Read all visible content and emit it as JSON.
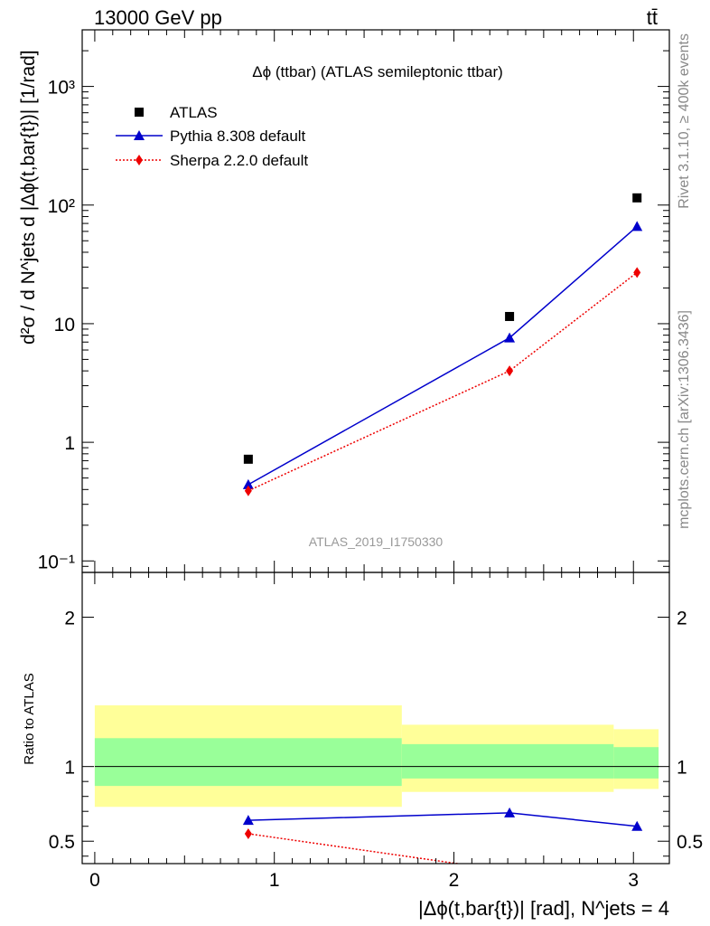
{
  "header": {
    "energy": "13000 GeV pp",
    "process": "tt̄"
  },
  "side_labels": {
    "rivet": "Rivet 3.1.10, ≥ 400k events",
    "mcplots": "mcplots.cern.ch [arXiv:1306.3436]"
  },
  "main_title": "Δϕ (ttbar) (ATLAS semileptonic ttbar)",
  "watermark": "ATLAS_2019_I1750330",
  "ylabel_main": "d²σ / d N^jets d |Δϕ(t,bar{t})| [1/rad]",
  "ylabel_ratio": "Ratio to ATLAS",
  "xlabel": "|Δϕ(t,bar{t})| [rad], N^jets = 4",
  "legend": [
    "ATLAS",
    "Pythia 8.308 default",
    "Sherpa 2.2.0 default"
  ],
  "chart_data": [
    {
      "type": "scatter",
      "title": "Δϕ (ttbar) (ATLAS semileptonic ttbar)",
      "xlabel": "|Δϕ(t,bar{t})| [rad], N^jets = 4",
      "ylabel": "d²σ / d N^jets d |Δϕ(t,bar{t})| [1/rad]",
      "yscale": "log",
      "xlim": [
        -0.07,
        3.2
      ],
      "ylim": [
        0.08,
        3000
      ],
      "y_ticks": [
        "10⁻¹",
        "1",
        "10",
        "10²",
        "10³"
      ],
      "legend_position": "top-left",
      "x": [
        0.855,
        2.31,
        3.02
      ],
      "series": [
        {
          "name": "ATLAS",
          "color": "#000000",
          "marker": "square",
          "values": [
            0.72,
            11.5,
            115
          ]
        },
        {
          "name": "Pythia 8.308 default",
          "color": "#0000cc",
          "marker": "triangle",
          "line": "solid",
          "values": [
            0.44,
            7.6,
            66
          ]
        },
        {
          "name": "Sherpa 2.2.0 default",
          "color": "#ee0000",
          "marker": "diamond",
          "line": "dotted",
          "values": [
            0.39,
            4.0,
            27
          ]
        }
      ]
    },
    {
      "type": "line",
      "ylabel": "Ratio to ATLAS",
      "xlim": [
        -0.07,
        3.2
      ],
      "ylim": [
        0.35,
        2.3
      ],
      "x_ticks": [
        "0",
        "1",
        "2",
        "3"
      ],
      "y_ticks": [
        "0.5",
        "1",
        "2"
      ],
      "reference_line": 1,
      "bands": [
        {
          "x_range": [
            0,
            1.71
          ],
          "yellow": [
            0.73,
            1.41
          ],
          "green": [
            0.87,
            1.19
          ]
        },
        {
          "x_range": [
            1.71,
            2.89
          ],
          "yellow": [
            0.83,
            1.28
          ],
          "green": [
            0.92,
            1.15
          ]
        },
        {
          "x_range": [
            2.89,
            3.14
          ],
          "yellow": [
            0.85,
            1.25
          ],
          "green": [
            0.92,
            1.13
          ]
        }
      ],
      "x": [
        0.855,
        2.31,
        3.02
      ],
      "series": [
        {
          "name": "Pythia 8.308 default",
          "color": "#0000cc",
          "marker": "triangle",
          "line": "solid",
          "values": [
            0.64,
            0.69,
            0.6
          ]
        },
        {
          "name": "Sherpa 2.2.0 default",
          "color": "#ee0000",
          "marker": "diamond",
          "line": "dotted",
          "values": [
            0.55,
            0.3,
            null
          ]
        }
      ]
    }
  ]
}
